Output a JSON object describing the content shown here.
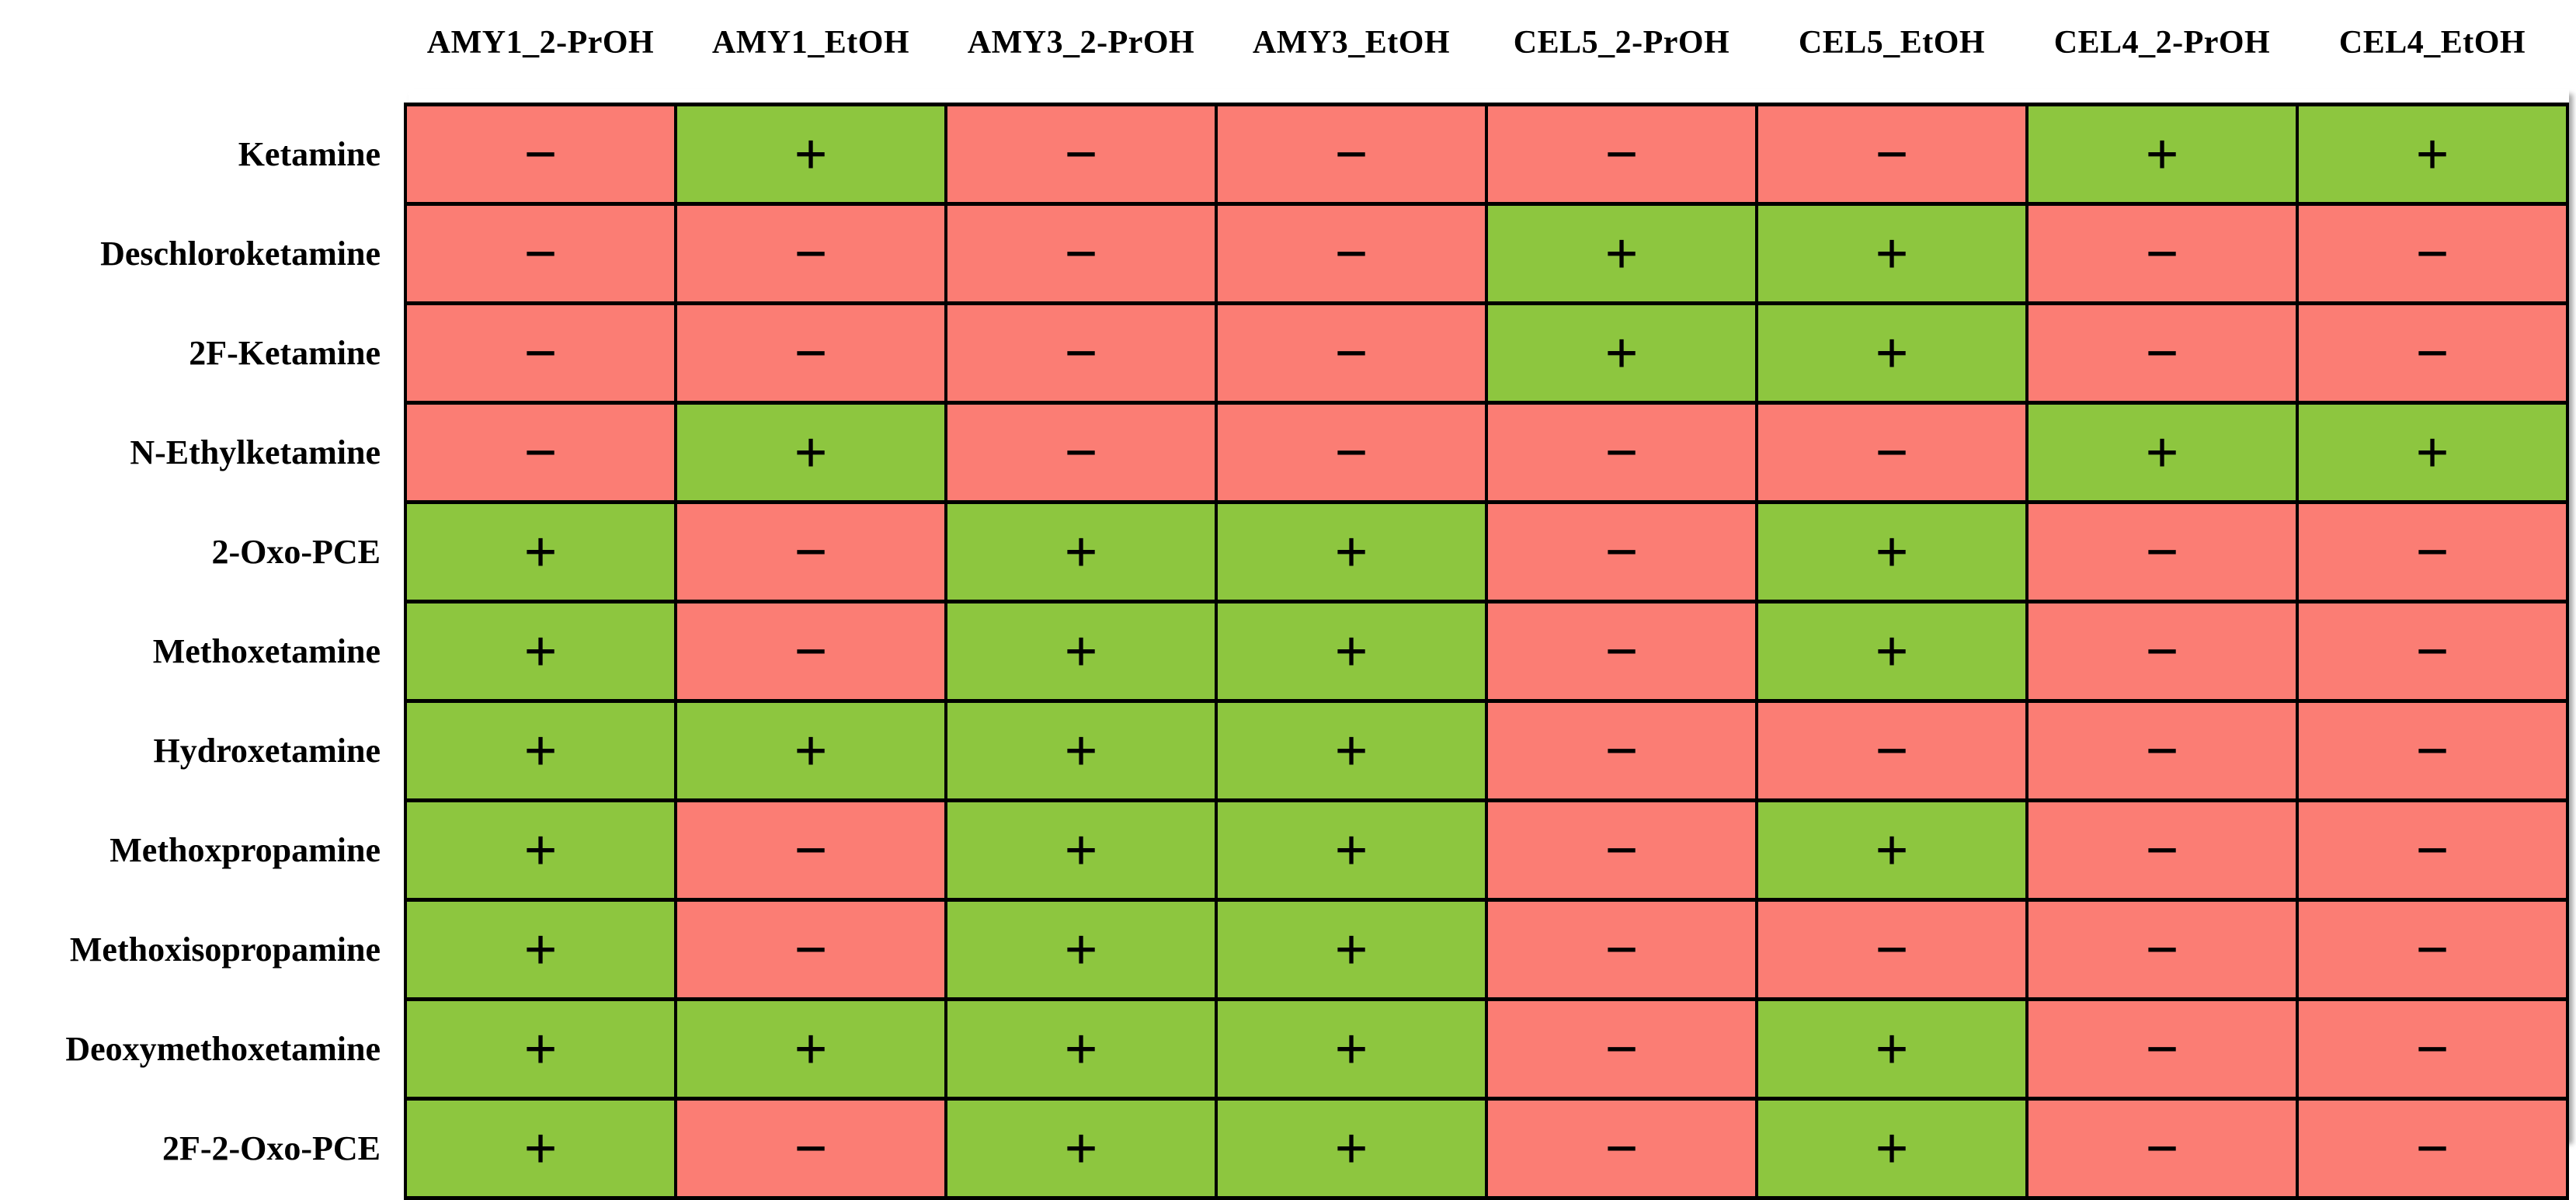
{
  "colors": {
    "positive_bg": "#8DC63F",
    "negative_bg": "#FB7D74",
    "grid_line": "#000000",
    "text": "#000000",
    "background": "#FFFFFF"
  },
  "chart_data": {
    "type": "heatmap",
    "title": "",
    "legend": {
      "positive_symbol": "+",
      "negative_symbol": "−"
    },
    "cell_color_map": {
      "+": "#8DC63F",
      "−": "#FB7D74"
    },
    "columns": [
      "AMY1_2-PrOH",
      "AMY1_EtOH",
      "AMY3_2-PrOH",
      "AMY3_EtOH",
      "CEL5_2-PrOH",
      "CEL5_EtOH",
      "CEL4_2-PrOH",
      "CEL4_EtOH"
    ],
    "rows": [
      "Ketamine",
      "Deschloroketamine",
      "2F-Ketamine",
      "N-Ethylketamine",
      "2-Oxo-PCE",
      "Methoxetamine",
      "Hydroxetamine",
      "Methoxpropamine",
      "Methoxisopropamine",
      "Deoxymethoxetamine",
      "2F-2-Oxo-PCE"
    ],
    "values": [
      [
        "−",
        "+",
        "−",
        "−",
        "−",
        "−",
        "+",
        "+"
      ],
      [
        "−",
        "−",
        "−",
        "−",
        "+",
        "+",
        "−",
        "−"
      ],
      [
        "−",
        "−",
        "−",
        "−",
        "+",
        "+",
        "−",
        "−"
      ],
      [
        "−",
        "+",
        "−",
        "−",
        "−",
        "−",
        "+",
        "+"
      ],
      [
        "+",
        "−",
        "+",
        "+",
        "−",
        "+",
        "−",
        "−"
      ],
      [
        "+",
        "−",
        "+",
        "+",
        "−",
        "+",
        "−",
        "−"
      ],
      [
        "+",
        "+",
        "+",
        "+",
        "−",
        "−",
        "−",
        "−"
      ],
      [
        "+",
        "−",
        "+",
        "+",
        "−",
        "+",
        "−",
        "−"
      ],
      [
        "+",
        "−",
        "+",
        "+",
        "−",
        "−",
        "−",
        "−"
      ],
      [
        "+",
        "+",
        "+",
        "+",
        "−",
        "+",
        "−",
        "−"
      ],
      [
        "+",
        "−",
        "+",
        "+",
        "−",
        "+",
        "−",
        "−"
      ]
    ]
  }
}
